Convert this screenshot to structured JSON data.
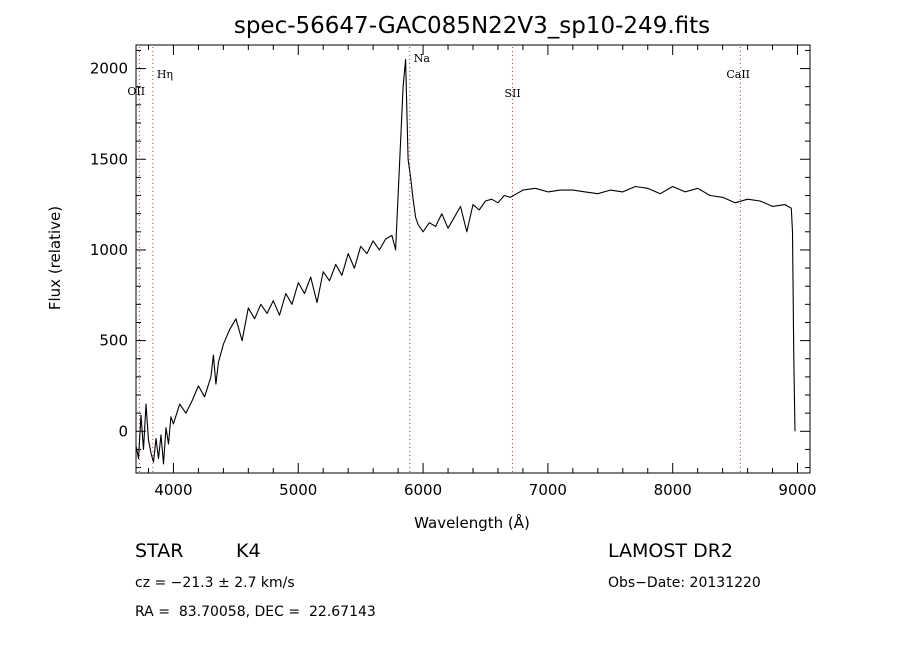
{
  "chart_data": {
    "type": "line",
    "title": "spec-56647-GAC085N22V3_sp10-249.fits",
    "xlabel": "Wavelength (Å)",
    "ylabel": "Flux (relative)",
    "xlim": [
      3700,
      9100
    ],
    "ylim": [
      -230,
      2130
    ],
    "xticks": [
      4000,
      5000,
      6000,
      7000,
      8000,
      9000
    ],
    "yticks": [
      0,
      500,
      1000,
      1500,
      2000
    ],
    "grid": false,
    "series": [
      {
        "x": [
          3700,
          3720,
          3740,
          3760,
          3780,
          3800,
          3820,
          3840,
          3860,
          3880,
          3900,
          3920,
          3940,
          3960,
          3980,
          4000,
          4050,
          4100,
          4150,
          4200,
          4250,
          4300,
          4320,
          4340,
          4360,
          4400,
          4450,
          4500,
          4550,
          4600,
          4650,
          4700,
          4750,
          4800,
          4850,
          4900,
          4950,
          5000,
          5050,
          5100,
          5150,
          5200,
          5250,
          5300,
          5350,
          5400,
          5450,
          5500,
          5550,
          5600,
          5650,
          5700,
          5750,
          5780,
          5800,
          5820,
          5840,
          5860,
          5880,
          5900,
          5920,
          5940,
          5960,
          5980,
          6000,
          6050,
          6100,
          6150,
          6200,
          6250,
          6300,
          6350,
          6400,
          6450,
          6500,
          6550,
          6600,
          6650,
          6700,
          6750,
          6800,
          6900,
          7000,
          7100,
          7200,
          7300,
          7400,
          7500,
          7600,
          7700,
          7800,
          7900,
          8000,
          8100,
          8200,
          8300,
          8400,
          8500,
          8600,
          8700,
          8800,
          8900,
          8950,
          8960,
          8970,
          8980
        ],
        "y": [
          -80,
          -150,
          90,
          -100,
          150,
          -50,
          -120,
          -170,
          -40,
          -150,
          -20,
          -180,
          20,
          -70,
          80,
          40,
          150,
          100,
          170,
          250,
          190,
          300,
          420,
          260,
          380,
          480,
          560,
          620,
          500,
          680,
          620,
          700,
          650,
          720,
          640,
          760,
          700,
          820,
          760,
          850,
          710,
          880,
          830,
          920,
          860,
          980,
          900,
          1020,
          980,
          1050,
          1000,
          1060,
          1080,
          1000,
          1300,
          1600,
          1900,
          2050,
          1500,
          1400,
          1280,
          1180,
          1140,
          1120,
          1100,
          1150,
          1130,
          1200,
          1120,
          1180,
          1240,
          1100,
          1250,
          1220,
          1270,
          1280,
          1260,
          1300,
          1290,
          1310,
          1330,
          1340,
          1320,
          1330,
          1330,
          1320,
          1310,
          1330,
          1320,
          1350,
          1340,
          1310,
          1350,
          1320,
          1340,
          1300,
          1290,
          1260,
          1280,
          1270,
          1240,
          1250,
          1230,
          1100,
          400,
          0
        ]
      }
    ],
    "spectral_lines": [
      {
        "label": "Hη",
        "x": 3835
      },
      {
        "label": "OII",
        "x": 3727
      },
      {
        "label": "Na",
        "x": 5893
      },
      {
        "label": "SII",
        "x": 6716
      },
      {
        "label": "CaII",
        "x": 8542
      }
    ]
  },
  "info": {
    "object_type": "STAR",
    "subclass": "K4",
    "redshift": "cz = −21.3 ± 2.7 km/s",
    "coords": "RA =  83.70058, DEC =  22.67143",
    "survey": "LAMOST DR2",
    "obs_date": "Obs−Date: 20131220"
  }
}
